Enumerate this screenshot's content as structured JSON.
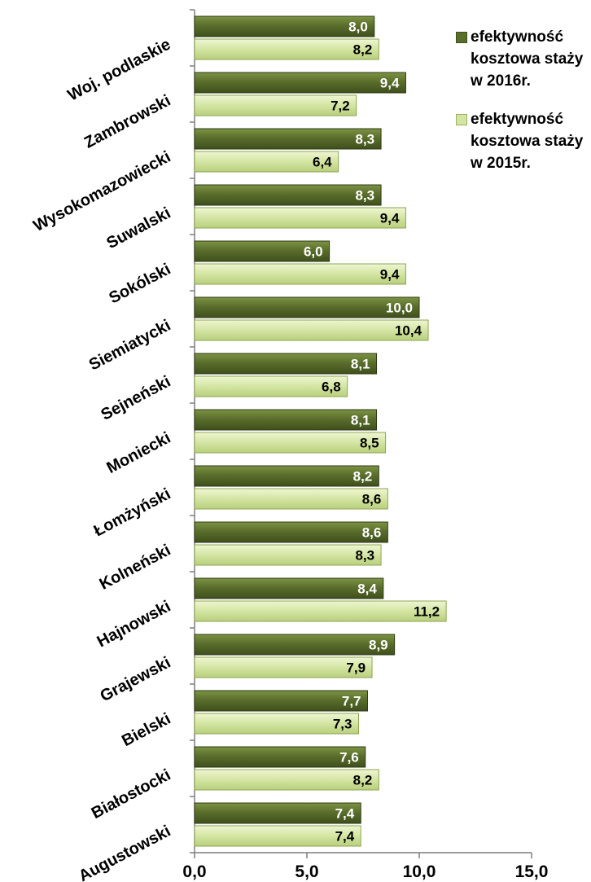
{
  "chart_data": {
    "type": "bar",
    "orientation": "horizontal",
    "categories": [
      "Woj. podlaskie",
      "Zambrowski",
      "Wysokomazowiecki",
      "Suwalski",
      "Sokólski",
      "Siemiatycki",
      "Sejneński",
      "Moniecki",
      "Łomżyński",
      "Kolneński",
      "Hajnowski",
      "Grajewski",
      "Bielski",
      "Białostocki",
      "Augustowski"
    ],
    "series": [
      {
        "name": "efektywność kosztowa staży w 2016r.",
        "values": [
          8.0,
          9.4,
          8.3,
          8.3,
          6.0,
          10.0,
          8.1,
          8.1,
          8.2,
          8.6,
          8.4,
          8.9,
          7.7,
          7.6,
          7.4
        ],
        "labels": [
          "8,0",
          "9,4",
          "8,3",
          "8,3",
          "6,0",
          "10,0",
          "8,1",
          "8,1",
          "8,2",
          "8,6",
          "8,4",
          "8,9",
          "7,7",
          "7,6",
          "7,4"
        ],
        "color": "#5a6e2c",
        "label_color": "#ffffff"
      },
      {
        "name": "efektywność kosztowa staży w 2015r.",
        "values": [
          8.2,
          7.2,
          6.4,
          9.4,
          9.4,
          10.4,
          6.8,
          8.5,
          8.6,
          8.3,
          11.2,
          7.9,
          7.3,
          8.2,
          7.4
        ],
        "labels": [
          "8,2",
          "7,2",
          "6,4",
          "9,4",
          "9,4",
          "10,4",
          "6,8",
          "8,5",
          "8,6",
          "8,3",
          "11,2",
          "7,9",
          "7,3",
          "8,2",
          "7,4"
        ],
        "color": "#d4e5a3",
        "label_color": "#000000"
      }
    ],
    "xlim": [
      0,
      15
    ],
    "xticks": [
      "0,0",
      "5,0",
      "10,0",
      "15,0"
    ],
    "xtick_values": [
      0,
      5,
      10,
      15
    ],
    "title": "",
    "xlabel": "",
    "ylabel": "",
    "grid": false,
    "legend_position": "top-right"
  }
}
